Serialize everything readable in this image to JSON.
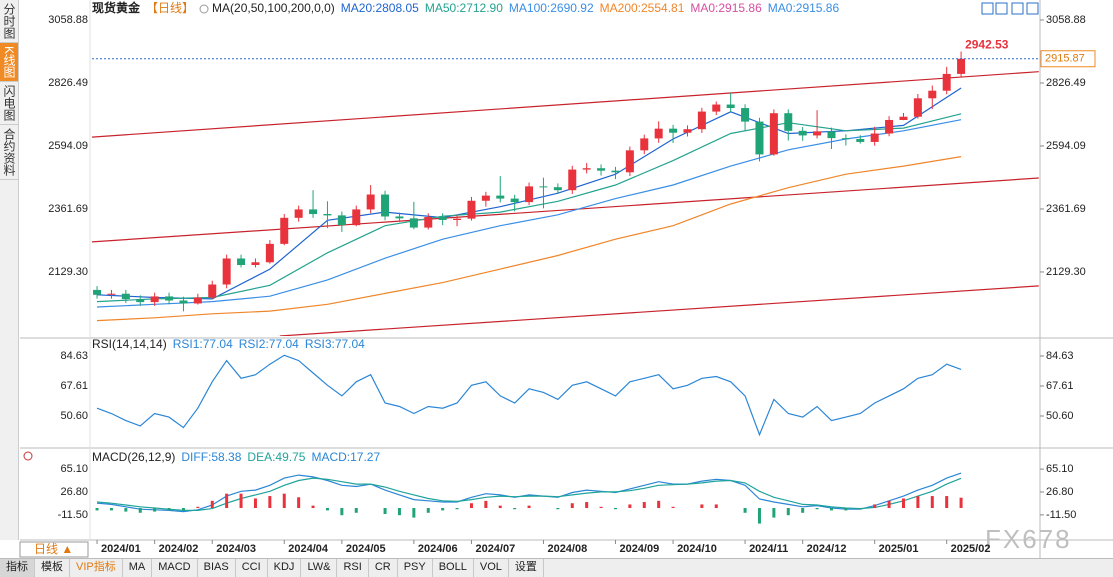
{
  "chart_data": [
    {
      "type": "candlestick",
      "title": "现货黄金",
      "subtitle": "【日线】",
      "indicator": "MA(20,50,100,200,0,0)",
      "xlim": [
        -5.35,
        65.48
      ],
      "xticks": [
        {
          "value": 0,
          "label": "2024/01"
        },
        {
          "value": 4,
          "label": "2024/02"
        },
        {
          "value": 8,
          "label": "2024/03"
        },
        {
          "value": 13,
          "label": "2024/04"
        },
        {
          "value": 17,
          "label": "2024/05"
        },
        {
          "value": 22,
          "label": "2024/06"
        },
        {
          "value": 26,
          "label": "2024/07"
        },
        {
          "value": 31,
          "label": "2024/08"
        },
        {
          "value": 36,
          "label": "2024/09"
        },
        {
          "value": 40,
          "label": "2024/10"
        },
        {
          "value": 45,
          "label": "2024/11"
        },
        {
          "value": 49,
          "label": "2024/12"
        },
        {
          "value": 54,
          "label": "2025/01"
        },
        {
          "value": 59,
          "label": "2025/02"
        }
      ],
      "ylim": [
        1893,
        3081
      ],
      "yticks": [
        3058.88,
        2826.49,
        2594.09,
        2361.69,
        {
          "value": 2129.3,
          "label": "2129.30"
        }
      ],
      "up_color": "#e8323c",
      "down_color": "#1fa377",
      "open": [
        2063,
        2045,
        2049,
        2029,
        2018,
        2039,
        2024,
        2013,
        2035,
        2083,
        2179,
        2155,
        2165,
        2233,
        2329,
        2360,
        2343,
        2338,
        2302,
        2360,
        2415,
        2334,
        2327,
        2293,
        2332,
        2321,
        2326,
        2392,
        2411,
        2400,
        2387,
        2445,
        2442,
        2431,
        2507,
        2512,
        2503,
        2497,
        2578,
        2622,
        2658,
        2643,
        2656,
        2721,
        2747,
        2734,
        2684,
        2563,
        2715,
        2650,
        2633,
        2648,
        2623,
        2620,
        2609,
        2640,
        2690,
        2702,
        2770,
        2798,
        2860
      ],
      "high": [
        2077,
        2063,
        2063,
        2043,
        2053,
        2053,
        2038,
        2049,
        2097,
        2193,
        2193,
        2179,
        2247,
        2343,
        2374,
        2431,
        2390,
        2352,
        2374,
        2450,
        2429,
        2348,
        2388,
        2346,
        2346,
        2340,
        2406,
        2425,
        2483,
        2414,
        2459,
        2477,
        2456,
        2521,
        2531,
        2526,
        2517,
        2592,
        2636,
        2685,
        2672,
        2670,
        2735,
        2758,
        2790,
        2748,
        2698,
        2729,
        2729,
        2664,
        2726,
        2662,
        2637,
        2634,
        2665,
        2704,
        2716,
        2786,
        2817,
        2886,
        2942.53
      ],
      "low": [
        2031,
        2031,
        2015,
        2004,
        2004,
        2010,
        1984,
        2009,
        2030,
        2069,
        2146,
        2146,
        2160,
        2228,
        2315,
        2329,
        2291,
        2277,
        2298,
        2346,
        2320,
        2313,
        2287,
        2286,
        2302,
        2298,
        2319,
        2370,
        2386,
        2353,
        2376,
        2364,
        2417,
        2417,
        2493,
        2485,
        2472,
        2483,
        2564,
        2606,
        2605,
        2629,
        2642,
        2708,
        2720,
        2650,
        2537,
        2558,
        2614,
        2613,
        2622,
        2583,
        2596,
        2603,
        2595,
        2630,
        2689,
        2695,
        2730,
        2785,
        2850
      ],
      "close": [
        2045,
        2049,
        2029,
        2018,
        2039,
        2024,
        2013,
        2035,
        2083,
        2179,
        2155,
        2165,
        2233,
        2329,
        2360,
        2343,
        2338,
        2302,
        2360,
        2415,
        2334,
        2327,
        2293,
        2332,
        2321,
        2326,
        2392,
        2411,
        2400,
        2387,
        2445,
        2442,
        2431,
        2507,
        2512,
        2503,
        2497,
        2578,
        2622,
        2658,
        2643,
        2656,
        2721,
        2747,
        2734,
        2684,
        2563,
        2715,
        2650,
        2633,
        2648,
        2623,
        2620,
        2609,
        2640,
        2690,
        2702,
        2770,
        2798,
        2860,
        2915.87
      ],
      "series": [
        {
          "name": "MA20:2808.05",
          "color": "#1f64d0",
          "x": [
            0,
            4,
            8,
            12,
            16,
            20,
            24,
            28,
            32,
            36,
            40,
            44,
            48,
            52,
            56,
            60
          ],
          "values": [
            2045,
            2035,
            2030,
            2140,
            2320,
            2350,
            2330,
            2370,
            2420,
            2490,
            2620,
            2720,
            2640,
            2650,
            2670,
            2808.05
          ]
        },
        {
          "name": "MA50:2712.90",
          "color": "#24a38f",
          "x": [
            0,
            4,
            8,
            12,
            16,
            20,
            24,
            28,
            32,
            36,
            40,
            44,
            48,
            52,
            56,
            60
          ],
          "values": [
            2020,
            2030,
            2035,
            2080,
            2200,
            2300,
            2335,
            2350,
            2390,
            2450,
            2540,
            2640,
            2680,
            2650,
            2660,
            2712.9
          ]
        },
        {
          "name": "MA100:2690.92",
          "color": "#3a8ee6",
          "x": [
            0,
            4,
            8,
            12,
            16,
            20,
            24,
            28,
            32,
            36,
            40,
            44,
            48,
            52,
            56,
            60
          ],
          "values": [
            2000,
            2010,
            2020,
            2040,
            2100,
            2180,
            2250,
            2300,
            2340,
            2400,
            2450,
            2520,
            2580,
            2620,
            2650,
            2690.92
          ]
        },
        {
          "name": "MA200:2554.81",
          "color": "#f0862a",
          "x": [
            0,
            4,
            8,
            12,
            16,
            20,
            24,
            28,
            32,
            36,
            40,
            44,
            48,
            52,
            56,
            60
          ],
          "values": [
            1950,
            1960,
            1975,
            1985,
            2010,
            2050,
            2090,
            2140,
            2190,
            2250,
            2300,
            2380,
            2440,
            2490,
            2520,
            2554.81
          ]
        }
      ],
      "extra_legend": [
        {
          "label": "MA0:2915.86",
          "color": "#d64fa0"
        },
        {
          "label": "MA0:2915.86",
          "color": "#3a8ee6"
        }
      ],
      "trend_lines": [
        {
          "color": "#c8232c",
          "x": [
            -0.35,
            65.4
          ],
          "values": [
            2627,
            2868
          ]
        },
        {
          "color": "#c8232c",
          "x": [
            -0.35,
            65.4
          ],
          "values": [
            2240,
            2476
          ]
        },
        {
          "color": "#c8232c",
          "x": [
            12.7,
            65.4
          ],
          "values": [
            1893,
            2078
          ]
        }
      ]
    },
    {
      "type": "line",
      "title": "RSI(14,14,14)",
      "ylim": [
        34.15,
        92.57
      ],
      "yticks": [
        84.63,
        67.61,
        {
          "value": 50.6,
          "label": "50.60"
        }
      ],
      "series": [
        {
          "name": "RSI1:77.04",
          "color": "#2b86d6",
          "values": [
            55,
            52,
            48,
            45,
            52,
            50,
            44,
            55,
            70,
            82,
            72,
            74,
            80,
            85,
            82,
            75,
            68,
            62,
            70,
            74,
            58,
            56,
            52,
            56,
            55,
            58,
            68,
            70,
            62,
            58,
            66,
            64,
            60,
            68,
            70,
            66,
            62,
            70,
            72,
            74,
            66,
            68,
            72,
            73,
            70,
            62,
            40,
            60,
            52,
            50,
            56,
            48,
            50,
            52,
            58,
            62,
            66,
            72,
            74,
            80,
            77.04
          ]
        }
      ],
      "extra_legend": [
        {
          "label": "RSI2:77.04",
          "color": "#2b86d6"
        },
        {
          "label": "RSI3:77.04",
          "color": "#2b86d6"
        }
      ]
    },
    {
      "type": "macd",
      "title": "MACD(26,12,9)",
      "ylim": [
        -53.5,
        93.7
      ],
      "yticks": [
        {
          "value": 65.1,
          "label": "65.10"
        },
        {
          "value": 26.8,
          "label": "26.80"
        },
        {
          "value": -11.5,
          "label": "-11.50"
        }
      ],
      "up_color": "#e8323c",
      "down_color": "#1fa377",
      "series": [
        {
          "name": "DIFF:58.38",
          "color": "#2b86d6",
          "values": [
            8,
            6,
            2,
            -2,
            -3,
            -4,
            -6,
            -3,
            5,
            20,
            28,
            30,
            38,
            50,
            55,
            52,
            46,
            38,
            36,
            40,
            30,
            22,
            14,
            12,
            10,
            10,
            18,
            24,
            22,
            18,
            22,
            20,
            18,
            26,
            30,
            28,
            26,
            32,
            38,
            44,
            40,
            40,
            45,
            48,
            46,
            38,
            15,
            10,
            6,
            2,
            4,
            0,
            -2,
            -2,
            4,
            12,
            20,
            30,
            38,
            50,
            58.38
          ]
        },
        {
          "name": "DEA:49.75",
          "color": "#1fa39a",
          "values": [
            10,
            8,
            5,
            2,
            0,
            -2,
            -4,
            -4,
            -1,
            8,
            16,
            22,
            28,
            38,
            46,
            50,
            48,
            44,
            40,
            40,
            35,
            28,
            22,
            16,
            12,
            11,
            14,
            18,
            20,
            19,
            20,
            20,
            19,
            22,
            25,
            27,
            27,
            29,
            33,
            38,
            39,
            40,
            42,
            45,
            46,
            42,
            28,
            18,
            12,
            6,
            5,
            2,
            0,
            -1,
            1,
            6,
            12,
            20,
            28,
            40,
            49.75
          ]
        },
        {
          "name": "MACD:17.27",
          "color": "#2b86d6",
          "bars": true,
          "values": [
            -4,
            -4,
            -6,
            -8,
            -6,
            -4,
            -4,
            2,
            12,
            24,
            24,
            16,
            20,
            24,
            18,
            4,
            -4,
            -12,
            -8,
            0,
            -10,
            -12,
            -16,
            -8,
            -4,
            -2,
            8,
            12,
            4,
            -2,
            4,
            0,
            -2,
            8,
            10,
            2,
            -2,
            6,
            10,
            12,
            2,
            0,
            6,
            6,
            0,
            -8,
            -26,
            -16,
            -12,
            -8,
            -2,
            -4,
            -4,
            -2,
            6,
            12,
            16,
            20,
            20,
            20,
            17.27
          ]
        }
      ]
    }
  ],
  "ui": {
    "sidebar": [
      "分时图",
      "K线图",
      "闪电图",
      "合约资料"
    ],
    "period": "日线 ▲",
    "watermark": "FX678",
    "tabs": [
      "指标",
      "模板",
      "VIP指标",
      "MA",
      "MACD",
      "BIAS",
      "CCI",
      "KDJ",
      "LW&",
      "RSI",
      "CR",
      "PSY",
      "BOLL",
      "VOL",
      "设置"
    ]
  }
}
